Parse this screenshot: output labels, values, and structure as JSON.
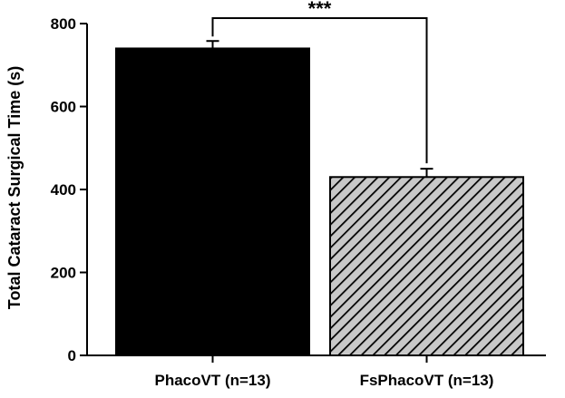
{
  "chart_data": {
    "type": "bar",
    "categories": [
      "PhacoVT (n=13)",
      "FsPhacoVT (n=13)"
    ],
    "values": [
      740,
      430
    ],
    "errors": [
      18,
      20
    ],
    "ylabel": "Total Cataract Surgical Time (s)",
    "xlabel": "",
    "ylim": [
      0,
      800
    ],
    "yticks": [
      0,
      200,
      400,
      600,
      800
    ],
    "bar_fills": [
      "solid",
      "hatched"
    ],
    "bar_colors": [
      "#000000",
      "#c8c8c8"
    ],
    "significance": {
      "label": "***",
      "between": [
        0,
        1
      ]
    },
    "grid": false,
    "legend": "none"
  }
}
